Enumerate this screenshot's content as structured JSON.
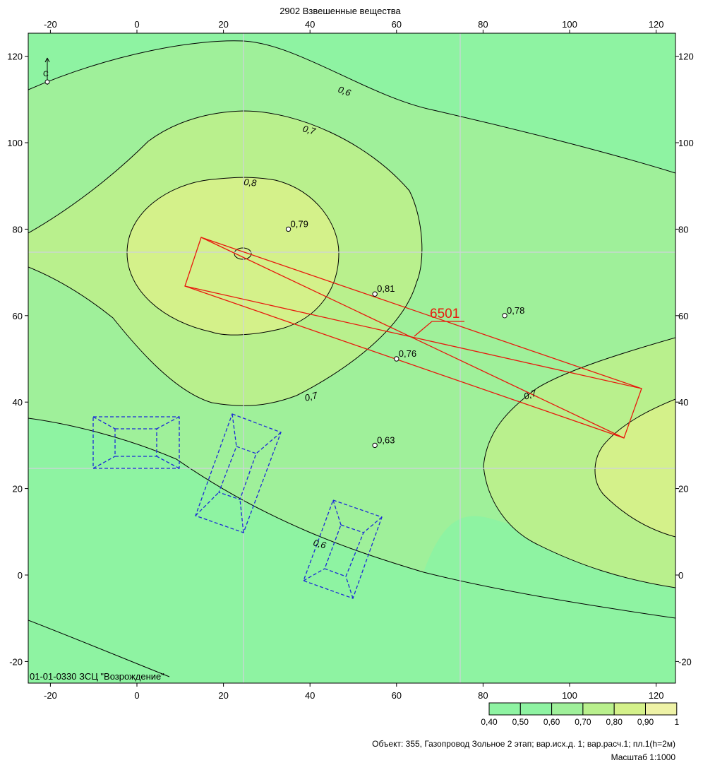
{
  "title": "2902 Взвешенные вещества",
  "x_ticks": [
    "-20",
    "0",
    "20",
    "40",
    "60",
    "80",
    "100",
    "120"
  ],
  "y_ticks": [
    "120",
    "100",
    "80",
    "60",
    "40",
    "20",
    "0",
    "-20"
  ],
  "contour_labels": [
    "0,6",
    "0,7",
    "0,8",
    "0,7",
    "0,7",
    "0,6"
  ],
  "points": [
    {
      "label": "0,79",
      "x": 35,
      "y": 80
    },
    {
      "label": "0,81",
      "x": 55,
      "y": 65
    },
    {
      "label": "0,78",
      "x": 85,
      "y": 60
    },
    {
      "label": "0,76",
      "x": 60,
      "y": 50
    },
    {
      "label": "0,63",
      "x": 55,
      "y": 30
    }
  ],
  "source_id": "6501",
  "north_letter": "С",
  "footer_id": "01-01-0330 ЗСЦ  \"Возрождение\"",
  "legend": {
    "labels": [
      "0,40",
      "0,50",
      "0,60",
      "0,70",
      "0,80",
      "0,90",
      "1"
    ],
    "colors": [
      "#8ef3a2",
      "#8ef3a2",
      "#9ff09a",
      "#b9f08d",
      "#d4f18a",
      "#eef2a6"
    ]
  },
  "object_text": "Объект: 355, Газопровод Зольное 2 этап; вар.исх.д. 1; вар.расч.1; пл.1(h=2м)",
  "scale_text": "Масштаб 1:1000",
  "colors": {
    "level_040": "#8ef3a2",
    "level_060": "#9ff09a",
    "level_070": "#b9f08d",
    "level_080": "#d4f18a",
    "level_090": "#eef2a6",
    "source": "#e8180c",
    "buildings": "#1b2ad6"
  }
}
